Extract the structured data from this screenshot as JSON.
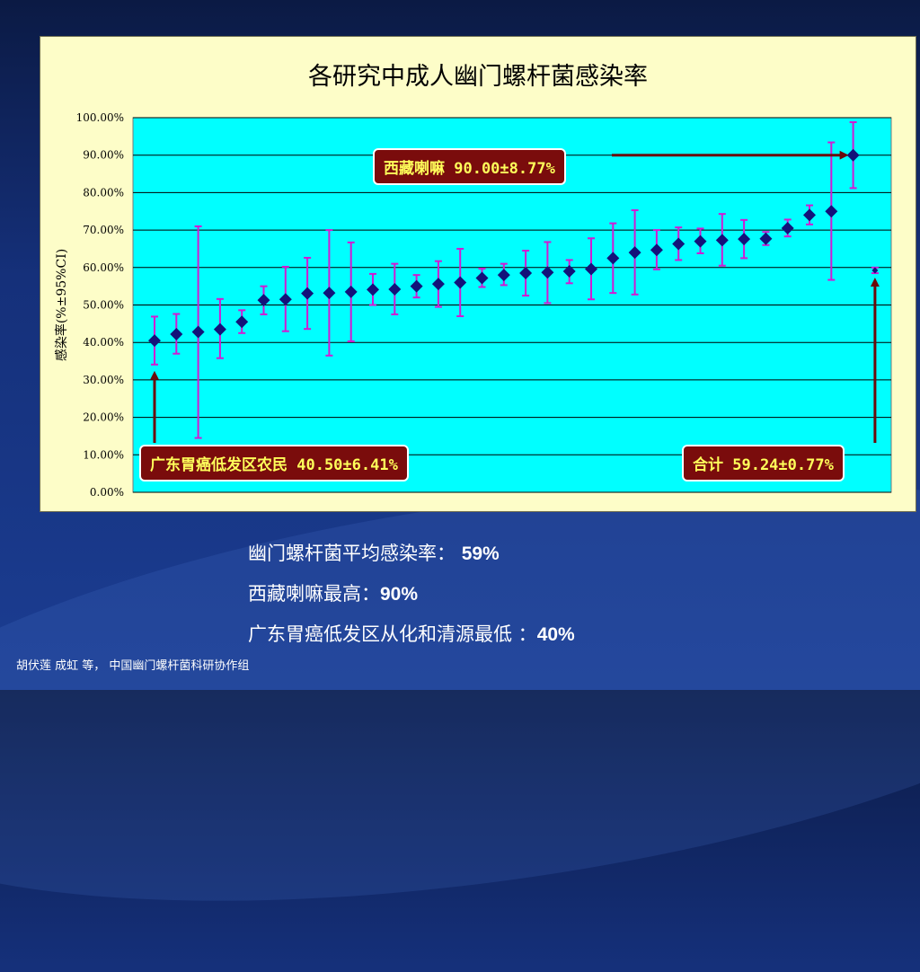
{
  "chart_data": {
    "type": "scatter",
    "title": "各研究中成人幽门螺杆菌感染率",
    "ylabel": "感染率(%±95%CI)",
    "ylim": [
      0,
      100
    ],
    "yticks": [
      "0.00%",
      "10.00%",
      "20.00%",
      "30.00%",
      "40.00%",
      "50.00%",
      "60.00%",
      "70.00%",
      "80.00%",
      "90.00%",
      "100.00%"
    ],
    "grid": true,
    "points": [
      {
        "y": 40.5,
        "lo": 34.1,
        "hi": 46.9
      },
      {
        "y": 42.2,
        "lo": 37.0,
        "hi": 47.6
      },
      {
        "y": 42.8,
        "lo": 14.5,
        "hi": 71.0
      },
      {
        "y": 43.5,
        "lo": 35.8,
        "hi": 51.6
      },
      {
        "y": 45.5,
        "lo": 42.5,
        "hi": 48.6
      },
      {
        "y": 51.3,
        "lo": 47.5,
        "hi": 55.0
      },
      {
        "y": 51.5,
        "lo": 43.0,
        "hi": 60.2
      },
      {
        "y": 53.1,
        "lo": 43.6,
        "hi": 62.6
      },
      {
        "y": 53.2,
        "lo": 36.5,
        "hi": 70.0
      },
      {
        "y": 53.5,
        "lo": 40.3,
        "hi": 66.7
      },
      {
        "y": 54.1,
        "lo": 50.0,
        "hi": 58.3
      },
      {
        "y": 54.2,
        "lo": 47.5,
        "hi": 61.0
      },
      {
        "y": 55.0,
        "lo": 52.0,
        "hi": 58.0
      },
      {
        "y": 55.6,
        "lo": 49.5,
        "hi": 61.7
      },
      {
        "y": 56.0,
        "lo": 47.0,
        "hi": 65.0
      },
      {
        "y": 57.2,
        "lo": 54.8,
        "hi": 59.7
      },
      {
        "y": 58.0,
        "lo": 55.3,
        "hi": 61.0
      },
      {
        "y": 58.5,
        "lo": 52.5,
        "hi": 64.5
      },
      {
        "y": 58.7,
        "lo": 50.5,
        "hi": 66.8
      },
      {
        "y": 59.0,
        "lo": 55.8,
        "hi": 62.0
      },
      {
        "y": 59.6,
        "lo": 51.5,
        "hi": 67.8
      },
      {
        "y": 62.5,
        "lo": 53.2,
        "hi": 71.8
      },
      {
        "y": 64.0,
        "lo": 52.8,
        "hi": 75.3
      },
      {
        "y": 64.7,
        "lo": 59.5,
        "hi": 70.0
      },
      {
        "y": 66.3,
        "lo": 62.0,
        "hi": 70.7
      },
      {
        "y": 67.0,
        "lo": 63.8,
        "hi": 70.4
      },
      {
        "y": 67.3,
        "lo": 60.5,
        "hi": 74.3
      },
      {
        "y": 67.6,
        "lo": 62.5,
        "hi": 72.7
      },
      {
        "y": 67.7,
        "lo": 66.0,
        "hi": 69.5
      },
      {
        "y": 70.5,
        "lo": 68.3,
        "hi": 72.8
      },
      {
        "y": 74.0,
        "lo": 71.5,
        "hi": 76.6
      },
      {
        "y": 75.0,
        "lo": 56.7,
        "hi": 93.4
      },
      {
        "y": 90.0,
        "lo": 81.2,
        "hi": 98.8
      },
      {
        "y": 59.24,
        "lo": 58.5,
        "hi": 60.0,
        "summary": true
      }
    ],
    "colors": {
      "plot_bg": "#00ffff",
      "marker": "#13137a",
      "error_bar": "#d21ad2",
      "gridline": "#000000",
      "arrow": "#6b0a0a"
    },
    "annotations": [
      {
        "id": "tibet",
        "text": "西藏喇嘛 90.00±8.77%",
        "point_index": 32
      },
      {
        "id": "guangdong",
        "text": "广东胃癌低发区农民 40.50±6.41%",
        "point_index": 0
      },
      {
        "id": "total",
        "text": "合计 59.24±0.77%",
        "point_index": 33
      }
    ]
  },
  "notes": {
    "line1_label": "幽门螺杆菌平均感染率：",
    "line1_value": "59%",
    "line2_label": "西藏喇嘛最高：",
    "line2_value": "90%",
    "line3_label": "广东胃癌低发区从化和清源最低 ：",
    "line3_value": "40%"
  },
  "footer": {
    "authors": "胡伏莲 成虹 等，",
    "group": "中国幽门螺杆菌科研协作组"
  }
}
